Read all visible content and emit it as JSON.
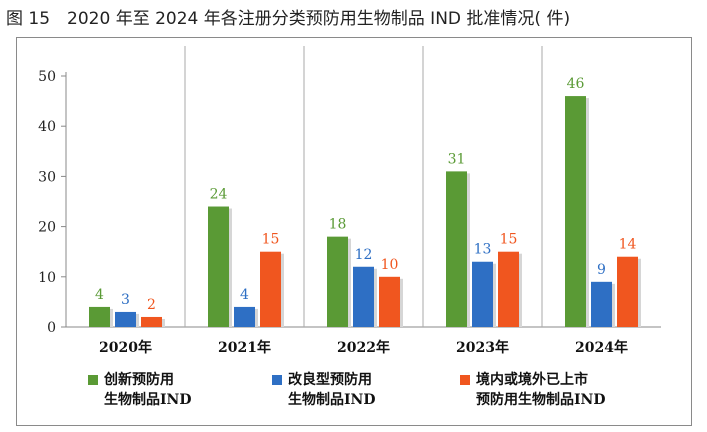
{
  "title": "图 15　2020 年至 2024 年各注册分类预防用生物制品 IND 批准情况( 件)",
  "colors": {
    "green": "#5a9a35",
    "blue": "#2e6fc4",
    "orange": "#f0561f",
    "axis": "#888888",
    "divider": "#aaaaaa"
  },
  "chart_data": {
    "type": "bar",
    "categories": [
      "2020年",
      "2021年",
      "2022年",
      "2023年",
      "2024年"
    ],
    "series": [
      {
        "name": "创新预防用生物制品IND",
        "legend_lines": [
          "创新预防用",
          "生物制品IND"
        ],
        "color": "#5a9a35",
        "values": [
          4,
          24,
          18,
          31,
          46
        ]
      },
      {
        "name": "改良型预防用生物制品IND",
        "legend_lines": [
          "改良型预防用",
          "生物制品IND"
        ],
        "color": "#2e6fc4",
        "values": [
          3,
          4,
          12,
          13,
          9
        ]
      },
      {
        "name": "境内或境外已上市预防用生物制品IND",
        "legend_lines": [
          "境内或境外已上市",
          "预防用生物制品IND"
        ],
        "color": "#f0561f",
        "values": [
          2,
          15,
          10,
          15,
          14
        ]
      }
    ],
    "ylim": [
      0,
      50
    ],
    "yticks": [
      0,
      10,
      20,
      30,
      40,
      50
    ],
    "xlabel": "",
    "ylabel": "",
    "grid": false,
    "legend": "bottom"
  }
}
